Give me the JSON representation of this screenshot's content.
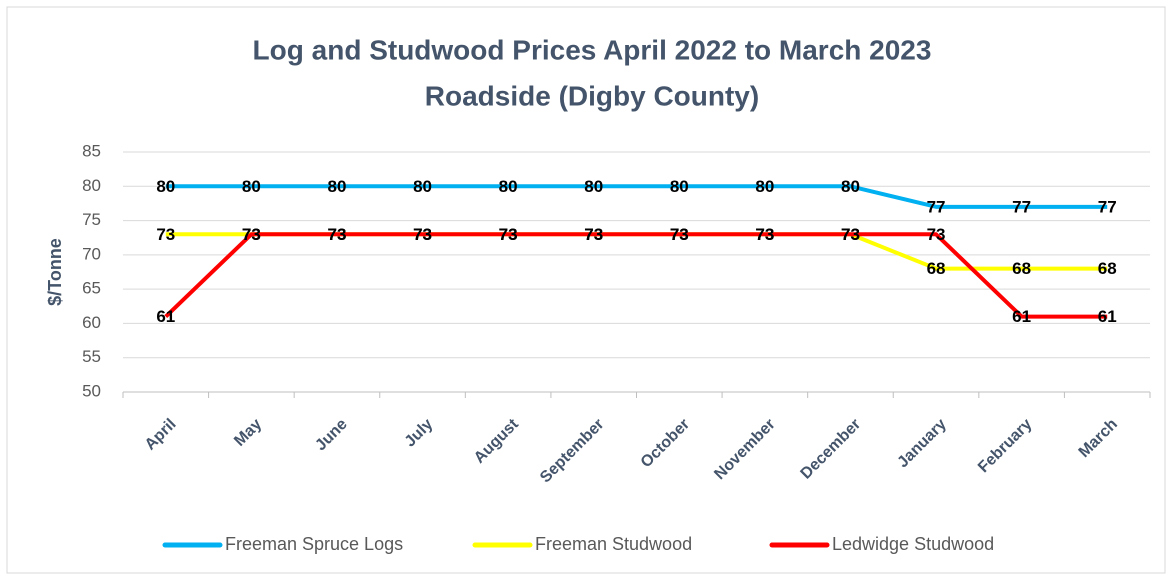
{
  "chart_data": {
    "type": "line",
    "title": [
      "Log and Studwood Prices April 2022 to March 2023",
      "Roadside (Digby County)"
    ],
    "y_label": "$/Tonne",
    "categories": [
      "April",
      "May",
      "June",
      "July",
      "August",
      "September",
      "October",
      "November",
      "December",
      "January",
      "February",
      "March"
    ],
    "series": [
      {
        "name": "Freeman Spruce Logs",
        "color": "#00b0f0",
        "values": [
          80,
          80,
          80,
          80,
          80,
          80,
          80,
          80,
          80,
          77,
          77,
          77
        ]
      },
      {
        "name": "Freeman Studwood",
        "color": "#ffff00",
        "values": [
          73,
          73,
          73,
          73,
          73,
          73,
          73,
          73,
          73,
          68,
          68,
          68
        ]
      },
      {
        "name": "Ledwidge Studwood",
        "color": "#ff0000",
        "values": [
          61,
          73,
          73,
          73,
          73,
          73,
          73,
          73,
          73,
          73,
          61,
          61
        ]
      }
    ],
    "ylim": [
      50,
      85
    ],
    "yticks": [
      50,
      55,
      60,
      65,
      70,
      75,
      80,
      85
    ],
    "grid": true,
    "legend": "bottom"
  }
}
